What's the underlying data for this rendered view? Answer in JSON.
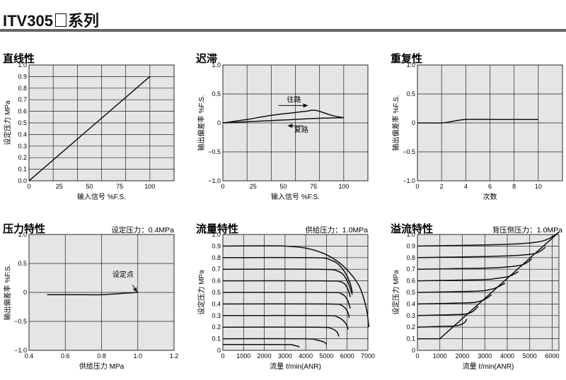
{
  "header": {
    "title_main": "ITV305",
    "title_suffix": "系列"
  },
  "chart_data": [
    {
      "id": "linearity",
      "type": "line",
      "title": "直线性",
      "condition": "",
      "xlabel": "输入信号 %F.S.",
      "ylabel": "设定压力 MPa",
      "xlim": [
        0,
        120
      ],
      "ylim": [
        0,
        1.0
      ],
      "xticks": [
        0,
        25,
        50,
        75,
        100
      ],
      "xtick_labels": [
        "0",
        "25",
        "50",
        "75",
        "100"
      ],
      "yticks": [
        0,
        0.1,
        0.2,
        0.3,
        0.4,
        0.5,
        0.6,
        0.7,
        0.8,
        0.9,
        1.0
      ],
      "ytick_labels": [
        "0.0",
        "0.1",
        "0.2",
        "0.3",
        "0.4",
        "0.5",
        "0.6",
        "0.7",
        "0.8",
        "0.9",
        "1.0"
      ],
      "xgrid": [
        0,
        20,
        40,
        60,
        80,
        100,
        120
      ],
      "ygrid": [
        0,
        0.1,
        0.2,
        0.3,
        0.4,
        0.5,
        0.6,
        0.7,
        0.8,
        0.9,
        1.0
      ],
      "series": [
        {
          "points": [
            [
              0,
              0
            ],
            [
              100,
              0.9
            ]
          ]
        }
      ],
      "annotations": []
    },
    {
      "id": "hysteresis",
      "type": "line",
      "title": "迟滞",
      "condition": "",
      "xlabel": "输入信号 %F.S.",
      "ylabel": "输出偏差率 %F.S.",
      "xlim": [
        0,
        120
      ],
      "ylim": [
        -1.0,
        1.0
      ],
      "xticks": [
        0,
        25,
        50,
        75,
        100
      ],
      "xtick_labels": [
        "0",
        "25",
        "50",
        "75",
        "100"
      ],
      "yticks": [
        -1.0,
        -0.5,
        0,
        0.5,
        1.0
      ],
      "ytick_labels": [
        "−1.0",
        "−0.5",
        "0",
        "0.5",
        "1.0"
      ],
      "xgrid": [
        0,
        20,
        40,
        60,
        80,
        100,
        120
      ],
      "ygrid": [
        -1.0,
        -0.5,
        0,
        0.5,
        1.0
      ],
      "series": [
        {
          "points": [
            [
              0,
              0
            ],
            [
              20,
              0.06
            ],
            [
              40,
              0.13
            ],
            [
              60,
              0.18
            ],
            [
              70,
              0.205
            ],
            [
              75,
              0.22
            ],
            [
              80,
              0.2
            ],
            [
              90,
              0.13
            ],
            [
              100,
              0.09
            ]
          ]
        },
        {
          "points": [
            [
              100,
              0.09
            ],
            [
              80,
              0.08
            ],
            [
              60,
              0.06
            ],
            [
              40,
              0.04
            ],
            [
              20,
              0.02
            ],
            [
              0,
              0
            ]
          ]
        }
      ],
      "annotations": [
        {
          "text": "往路",
          "x": 53,
          "y": 0.36
        },
        {
          "text": "复路",
          "x": 59,
          "y": -0.16
        }
      ],
      "arrows": [
        {
          "from": [
            46,
            0.3
          ],
          "to": [
            70,
            0.3
          ]
        },
        {
          "from": [
            66,
            -0.05
          ],
          "to": [
            54,
            -0.05
          ]
        }
      ]
    },
    {
      "id": "repeatability",
      "type": "line",
      "title": "重复性",
      "condition": "",
      "xlabel": "次数",
      "ylabel": "输出偏差率 %F.S.",
      "xlim": [
        0,
        12
      ],
      "ylim": [
        -1.0,
        1.0
      ],
      "xticks": [
        0,
        2,
        4,
        6,
        8,
        10
      ],
      "xtick_labels": [
        "0",
        "2",
        "4",
        "6",
        "8",
        "10"
      ],
      "yticks": [
        -1.0,
        -0.5,
        0,
        0.5,
        1.0
      ],
      "ytick_labels": [
        "−1.0",
        "−0.5",
        "0",
        "0.5",
        "1.0"
      ],
      "xgrid": [
        0,
        2,
        4,
        6,
        8,
        10,
        12
      ],
      "ygrid": [
        -1.0,
        -0.5,
        0,
        0.5,
        1.0
      ],
      "series": [
        {
          "points": [
            [
              0,
              0
            ],
            [
              2,
              0
            ],
            [
              3,
              0.03
            ],
            [
              4,
              0.06
            ],
            [
              6,
              0.06
            ],
            [
              8,
              0.06
            ],
            [
              10,
              0.06
            ]
          ]
        }
      ],
      "annotations": []
    },
    {
      "id": "pressure",
      "type": "line",
      "title": "压力特性",
      "condition": "设定压力：0.4MPa",
      "xlabel": "供给压力 MPa",
      "ylabel": "输出偏差率 %F.S.",
      "xlim": [
        0.4,
        1.2
      ],
      "ylim": [
        -1.0,
        1.0
      ],
      "xticks": [
        0.4,
        0.6,
        0.8,
        1.0,
        1.2
      ],
      "xtick_labels": [
        "0.4",
        "0.6",
        "0.8",
        "1.0",
        "1.2"
      ],
      "yticks": [
        -1.0,
        -0.5,
        0,
        0.5,
        1.0
      ],
      "ytick_labels": [
        "−1.0",
        "−0.5",
        "0",
        "0.5",
        "1.0"
      ],
      "xgrid": [
        0.4,
        0.6,
        0.8,
        1.0,
        1.2
      ],
      "ygrid": [
        -1.0,
        -0.5,
        0,
        0.5,
        1.0
      ],
      "series": [
        {
          "points": [
            [
              0.5,
              -0.04
            ],
            [
              0.7,
              -0.04
            ],
            [
              0.8,
              -0.04
            ],
            [
              0.9,
              -0.02
            ],
            [
              1.0,
              0
            ]
          ]
        }
      ],
      "annotations": [
        {
          "text": "设定点",
          "x": 0.86,
          "y": 0.27
        }
      ],
      "arrows": [
        {
          "from": [
            0.97,
            0.13
          ],
          "to": [
            0.995,
            0.01
          ]
        }
      ]
    },
    {
      "id": "flow",
      "type": "line",
      "title": "流量特性",
      "condition": "供给压力：1.0MPa",
      "xlabel": "流量 ℓ/min(ANR)",
      "ylabel": "设定压力 MPa",
      "xlim": [
        0,
        7000
      ],
      "ylim": [
        0,
        1.0
      ],
      "xticks": [
        0,
        1000,
        2000,
        3000,
        4000,
        5000,
        6000,
        7000
      ],
      "xtick_labels": [
        "0",
        "1000",
        "2000",
        "3000",
        "4000",
        "5000",
        "6000",
        "7000"
      ],
      "yticks": [
        0,
        0.1,
        0.2,
        0.3,
        0.4,
        0.5,
        0.6,
        0.7,
        0.8,
        0.9,
        1.0
      ],
      "ytick_labels": [
        "0",
        "0.1",
        "0.2",
        "0.3",
        "0.4",
        "0.5",
        "0.6",
        "0.7",
        "0.8",
        "0.9",
        "1.0"
      ],
      "xgrid": [
        0,
        1000,
        2000,
        3000,
        4000,
        5000,
        6000,
        7000
      ],
      "ygrid": [
        0,
        0.1,
        0.2,
        0.3,
        0.4,
        0.5,
        0.6,
        0.7,
        0.8,
        0.9,
        1.0
      ],
      "series": [
        {
          "points": [
            [
              0,
              0.9
            ],
            [
              3000,
              0.9
            ],
            [
              4500,
              0.86
            ],
            [
              5600,
              0.76
            ],
            [
              6500,
              0.58
            ],
            [
              6900,
              0.38
            ],
            [
              7050,
              0.2
            ]
          ]
        },
        {
          "points": [
            [
              0,
              0.8
            ],
            [
              4300,
              0.8
            ],
            [
              5200,
              0.78
            ],
            [
              5700,
              0.72
            ],
            [
              6100,
              0.6
            ],
            [
              6250,
              0.5
            ]
          ]
        },
        {
          "points": [
            [
              0,
              0.7
            ],
            [
              4600,
              0.7
            ],
            [
              5600,
              0.68
            ],
            [
              6000,
              0.6
            ],
            [
              6250,
              0.48
            ]
          ]
        },
        {
          "points": [
            [
              0,
              0.6
            ],
            [
              4800,
              0.6
            ],
            [
              5700,
              0.59
            ],
            [
              6000,
              0.54
            ],
            [
              6150,
              0.46
            ]
          ]
        },
        {
          "points": [
            [
              0,
              0.5
            ],
            [
              5000,
              0.5
            ],
            [
              5700,
              0.49
            ],
            [
              6000,
              0.44
            ],
            [
              6150,
              0.36
            ]
          ]
        },
        {
          "points": [
            [
              0,
              0.4
            ],
            [
              5000,
              0.4
            ],
            [
              5700,
              0.39
            ],
            [
              6000,
              0.34
            ],
            [
              6100,
              0.28
            ]
          ]
        },
        {
          "points": [
            [
              0,
              0.3
            ],
            [
              4800,
              0.3
            ],
            [
              5500,
              0.29
            ],
            [
              5900,
              0.24
            ],
            [
              6050,
              0.18
            ]
          ]
        },
        {
          "points": [
            [
              0,
              0.2
            ],
            [
              4500,
              0.2
            ],
            [
              5200,
              0.19
            ],
            [
              5500,
              0.16
            ],
            [
              5600,
              0.12
            ]
          ]
        },
        {
          "points": [
            [
              0,
              0.1
            ],
            [
              3900,
              0.1
            ],
            [
              4500,
              0.09
            ],
            [
              4900,
              0.07
            ],
            [
              5000,
              0.05
            ]
          ]
        },
        {
          "points": [
            [
              0,
              0.05
            ],
            [
              3000,
              0.05
            ],
            [
              3400,
              0.045
            ],
            [
              3700,
              0.03
            ]
          ]
        }
      ],
      "annotations": []
    },
    {
      "id": "relief",
      "type": "line",
      "title": "溢流特性",
      "condition": "背压侧压力：1.0MPa",
      "xlabel": "流量 ℓ/min(ANR)",
      "ylabel": "设定压力 MPa",
      "xlim": [
        0,
        6300
      ],
      "ylim": [
        0,
        1.0
      ],
      "xticks": [
        0,
        1000,
        2000,
        3000,
        4000,
        5000,
        6000
      ],
      "xtick_labels": [
        "0",
        "1000",
        "2000",
        "3000",
        "4000",
        "5000",
        "6000"
      ],
      "yticks": [
        0,
        0.1,
        0.2,
        0.3,
        0.4,
        0.5,
        0.6,
        0.7,
        0.8,
        0.9,
        1.0
      ],
      "ytick_labels": [
        "0",
        "0.1",
        "0.2",
        "0.3",
        "0.4",
        "0.5",
        "0.6",
        "0.7",
        "0.8",
        "0.9",
        "1.0"
      ],
      "xgrid": [
        0,
        1000,
        2000,
        3000,
        4000,
        5000,
        6000
      ],
      "ygrid": [
        0,
        0.1,
        0.2,
        0.3,
        0.4,
        0.5,
        0.6,
        0.7,
        0.8,
        0.9,
        1.0
      ],
      "series": [
        {
          "points": [
            [
              1000,
              0.1
            ],
            [
              6300,
              1.02
            ]
          ]
        },
        {
          "points": [
            [
              0,
              0.9
            ],
            [
              3000,
              0.91
            ],
            [
              4500,
              0.92
            ],
            [
              5500,
              0.94
            ],
            [
              6000,
              0.98
            ],
            [
              6300,
              1.02
            ]
          ]
        },
        {
          "points": [
            [
              0,
              0.8
            ],
            [
              3000,
              0.81
            ],
            [
              4500,
              0.82
            ],
            [
              5300,
              0.84
            ],
            [
              5700,
              0.89
            ]
          ]
        },
        {
          "points": [
            [
              0,
              0.7
            ],
            [
              3000,
              0.71
            ],
            [
              4000,
              0.72
            ],
            [
              4700,
              0.74
            ],
            [
              5100,
              0.79
            ]
          ]
        },
        {
          "points": [
            [
              0,
              0.6
            ],
            [
              2800,
              0.61
            ],
            [
              3500,
              0.62
            ],
            [
              4100,
              0.64
            ],
            [
              4500,
              0.68
            ]
          ]
        },
        {
          "points": [
            [
              0,
              0.5
            ],
            [
              2500,
              0.51
            ],
            [
              3100,
              0.52
            ],
            [
              3500,
              0.54
            ],
            [
              3900,
              0.58
            ]
          ]
        },
        {
          "points": [
            [
              0,
              0.4
            ],
            [
              2200,
              0.41
            ],
            [
              2700,
              0.42
            ],
            [
              3000,
              0.44
            ],
            [
              3300,
              0.48
            ]
          ]
        },
        {
          "points": [
            [
              0,
              0.3
            ],
            [
              1900,
              0.31
            ],
            [
              2300,
              0.32
            ],
            [
              2500,
              0.34
            ],
            [
              2700,
              0.38
            ]
          ]
        },
        {
          "points": [
            [
              0,
              0.2
            ],
            [
              1600,
              0.21
            ],
            [
              1900,
              0.22
            ],
            [
              2100,
              0.24
            ],
            [
              2200,
              0.27
            ]
          ]
        },
        {
          "points": [
            [
              0,
              0.1
            ],
            [
              1000,
              0.1
            ]
          ]
        }
      ],
      "annotations": []
    }
  ]
}
